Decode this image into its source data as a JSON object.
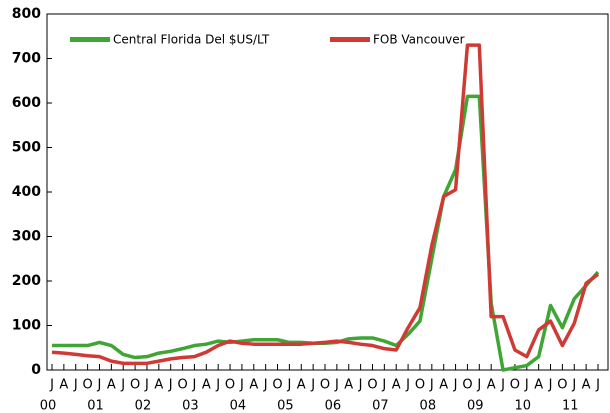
{
  "chart_data": {
    "type": "line",
    "categories": [
      "J",
      "A",
      "J",
      "O",
      "J",
      "A",
      "J",
      "O",
      "J",
      "A",
      "J",
      "O",
      "J",
      "A",
      "J",
      "O",
      "J",
      "A",
      "J",
      "O",
      "J",
      "A",
      "J",
      "O",
      "J",
      "A",
      "J",
      "O",
      "J",
      "A",
      "J",
      "O",
      "J",
      "A",
      "J",
      "O",
      "J",
      "A",
      "J",
      "O",
      "J",
      "A",
      "J",
      "O",
      "J",
      "A",
      "J"
    ],
    "years": [
      "00",
      "01",
      "02",
      "03",
      "04",
      "05",
      "06",
      "07",
      "08",
      "09",
      "10",
      "11"
    ],
    "series": [
      {
        "name": "Central Florida Del $US/LT",
        "color": "#3fa535",
        "values": [
          55,
          55,
          55,
          55,
          62,
          55,
          35,
          28,
          30,
          38,
          42,
          48,
          55,
          58,
          65,
          62,
          65,
          68,
          68,
          68,
          62,
          62,
          60,
          60,
          62,
          70,
          72,
          72,
          65,
          55,
          80,
          110,
          250,
          390,
          450,
          615,
          615,
          150,
          0,
          5,
          10,
          30,
          145,
          95,
          160,
          190,
          220
        ]
      },
      {
        "name": "FOB Vancouver",
        "color": "#d03a35",
        "values": [
          40,
          38,
          35,
          32,
          30,
          20,
          15,
          15,
          15,
          20,
          25,
          28,
          30,
          40,
          55,
          65,
          60,
          58,
          58,
          58,
          58,
          58,
          60,
          62,
          65,
          62,
          58,
          55,
          48,
          45,
          95,
          140,
          280,
          390,
          405,
          730,
          730,
          120,
          120,
          45,
          30,
          90,
          110,
          55,
          105,
          195,
          215
        ]
      }
    ],
    "ylim": [
      0,
      800
    ],
    "yticks": [
      0,
      100,
      200,
      300,
      400,
      500,
      600,
      700,
      800
    ]
  }
}
